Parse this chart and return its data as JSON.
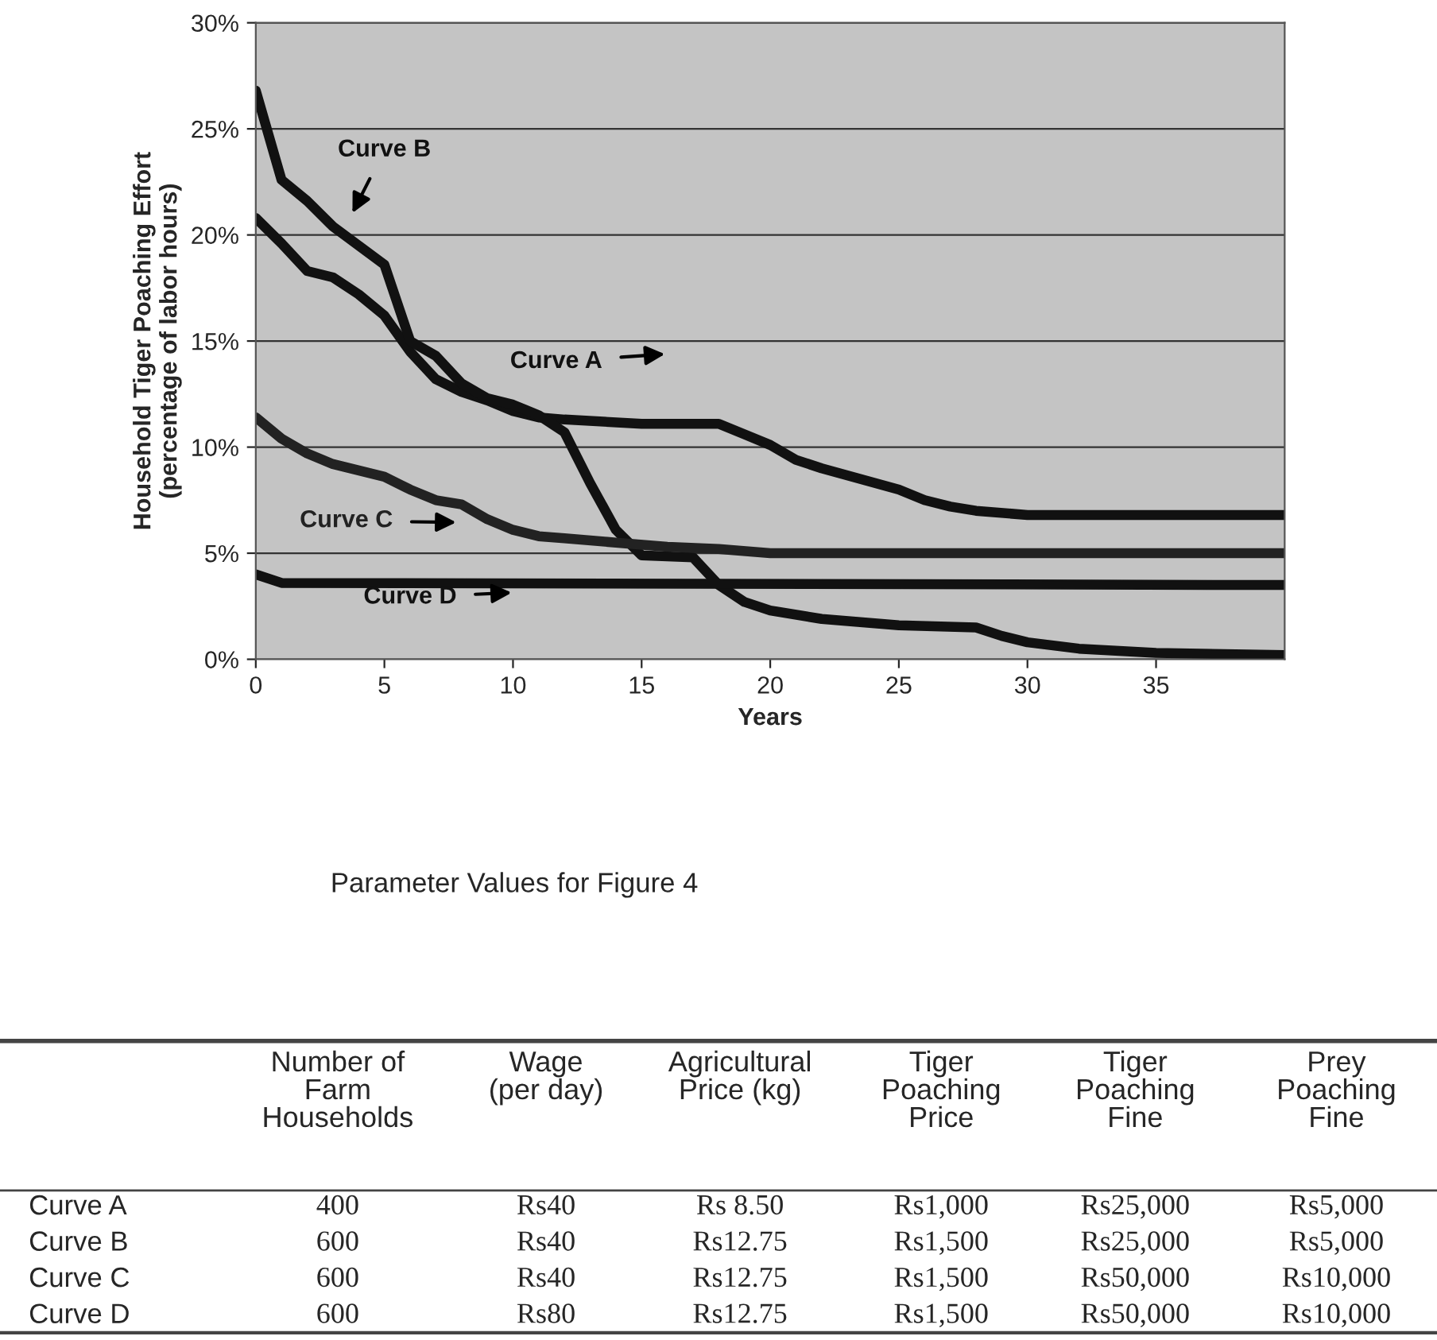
{
  "chart_data": [
    {
      "type": "line",
      "xlabel": "Years",
      "ylabel": "Household Tiger Poaching Effort\n(percentage of labor hours)",
      "xlim": [
        0,
        40
      ],
      "xticks": [
        0,
        5,
        10,
        15,
        20,
        25,
        30,
        35
      ],
      "ylim": [
        0,
        30
      ],
      "yticks": [
        {
          "value": 0,
          "label": "0%"
        },
        {
          "value": 5,
          "label": "5%"
        },
        {
          "value": 10,
          "label": "10%"
        },
        {
          "value": 15,
          "label": "15%"
        },
        {
          "value": 20,
          "label": "20%"
        },
        {
          "value": 25,
          "label": "25%"
        },
        {
          "value": 30,
          "label": "30%"
        }
      ],
      "grid": "y",
      "legend": false,
      "marker": "none",
      "line_style": "solid",
      "series": [
        {
          "name": "Curve A",
          "color": "#111111",
          "x": [
            0,
            1,
            2,
            3,
            4,
            5,
            6,
            7,
            8,
            9,
            10,
            11,
            12,
            15,
            18,
            19,
            20,
            21,
            22,
            25,
            26,
            27,
            28,
            30,
            40
          ],
          "values": [
            20.8,
            19.6,
            18.3,
            18.0,
            17.2,
            16.2,
            14.5,
            13.2,
            12.6,
            12.2,
            11.7,
            11.4,
            11.3,
            11.1,
            11.1,
            10.6,
            10.1,
            9.4,
            9.0,
            8.0,
            7.5,
            7.2,
            7.0,
            6.8,
            6.8
          ]
        },
        {
          "name": "Curve B",
          "color": "#111111",
          "x": [
            0,
            1,
            2,
            3,
            4,
            5,
            6,
            7,
            8,
            9,
            10,
            11,
            12,
            13,
            14,
            15,
            17,
            18,
            19,
            20,
            22,
            25,
            28,
            29,
            30,
            32,
            35,
            40
          ],
          "values": [
            26.8,
            22.6,
            21.6,
            20.4,
            19.5,
            18.6,
            15.0,
            14.3,
            13.0,
            12.3,
            12.0,
            11.5,
            10.7,
            8.3,
            6.1,
            4.9,
            4.8,
            3.5,
            2.7,
            2.3,
            1.9,
            1.6,
            1.5,
            1.1,
            0.8,
            0.5,
            0.3,
            0.2
          ]
        },
        {
          "name": "Curve C",
          "color": "#222222",
          "x": [
            0,
            1,
            2,
            3,
            4,
            5,
            6,
            7,
            8,
            9,
            10,
            11,
            12,
            14,
            16,
            18,
            20,
            40
          ],
          "values": [
            11.4,
            10.4,
            9.7,
            9.2,
            8.9,
            8.6,
            8.0,
            7.5,
            7.3,
            6.6,
            6.1,
            5.8,
            5.7,
            5.5,
            5.3,
            5.2,
            5.0,
            5.0
          ]
        },
        {
          "name": "Curve D",
          "color": "#111111",
          "x": [
            0,
            1,
            40
          ],
          "values": [
            4.0,
            3.6,
            3.5
          ]
        }
      ]
    },
    {
      "type": "other",
      "title": "Parameter Values for Figure 4",
      "categories": [
        null,
        "Number of\nFarm\nHouseholds",
        "Wage\n(per day)",
        "Agricultural\nPrice (kg)",
        "Tiger\nPoaching\nPrice",
        "Tiger\nPoaching\nFine",
        "Prey\nPoaching\nFine"
      ],
      "y_categories": [
        "Curve A",
        "Curve B",
        "Curve C",
        "Curve D"
      ],
      "cell_labels": [
        [
          "400",
          "Rs40",
          "Rs 8.50",
          "Rs1,000",
          "Rs25,000",
          "Rs5,000"
        ],
        [
          "600",
          "Rs40",
          "Rs12.75",
          "Rs1,500",
          "Rs25,000",
          "Rs5,000"
        ],
        [
          "600",
          "Rs40",
          "Rs12.75",
          "Rs1,500",
          "Rs50,000",
          "Rs10,000"
        ],
        [
          "600",
          "Rs80",
          "Rs12.75",
          "Rs1,500",
          "Rs50,000",
          "Rs10,000"
        ]
      ]
    }
  ]
}
